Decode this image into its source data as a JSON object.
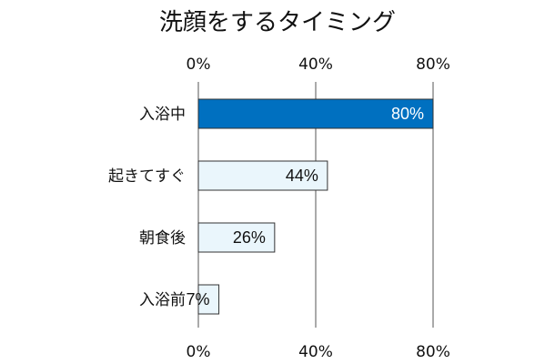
{
  "chart_data": {
    "type": "bar",
    "orientation": "horizontal",
    "title": "洗顔をするタイミング",
    "xlabel": "",
    "ylabel": "",
    "categories": [
      "入浴中",
      "起きてすぐ",
      "朝食後",
      "入浴前"
    ],
    "values": [
      80,
      44,
      26,
      7
    ],
    "value_labels": [
      "80%",
      "44%",
      "26%",
      "7%"
    ],
    "xlim": [
      0,
      80
    ],
    "ticks": [
      0,
      40,
      80
    ],
    "tick_labels": [
      "0%",
      "40%",
      "80%"
    ],
    "ticks_top": true,
    "ticks_bottom": true,
    "grid": true,
    "legend": "none",
    "colors": {
      "highlight_fill": "#0070c0",
      "highlight_text": "#ffffff",
      "bar_fill": "#eaf6fc",
      "bar_text": "#111111",
      "bar_stroke": "#333333",
      "grid": "#555555"
    }
  }
}
